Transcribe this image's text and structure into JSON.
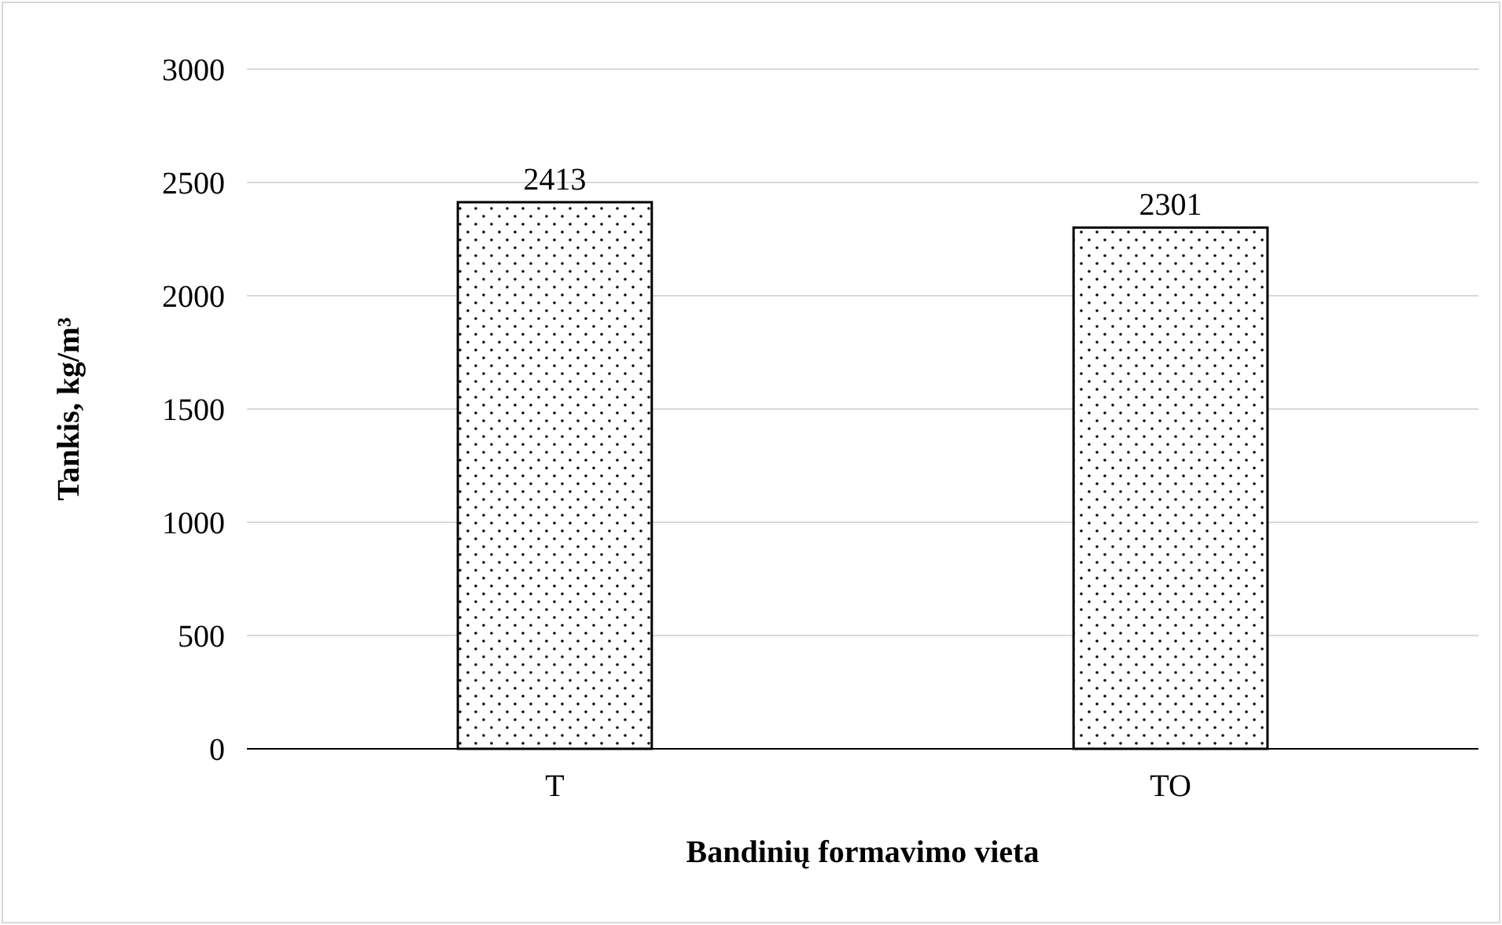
{
  "chart_data": {
    "type": "bar",
    "xlabel": "Bandinių formavimo vieta",
    "ylabel": "Tankis, kg/m³",
    "categories": [
      "T",
      "TO"
    ],
    "values": [
      2413,
      2301
    ],
    "color": "#000000",
    "ylim": [
      0,
      3000
    ],
    "yticks": [
      0,
      500,
      1000,
      1500,
      2000,
      2500,
      3000
    ],
    "grid": "y",
    "data_labels": true
  }
}
